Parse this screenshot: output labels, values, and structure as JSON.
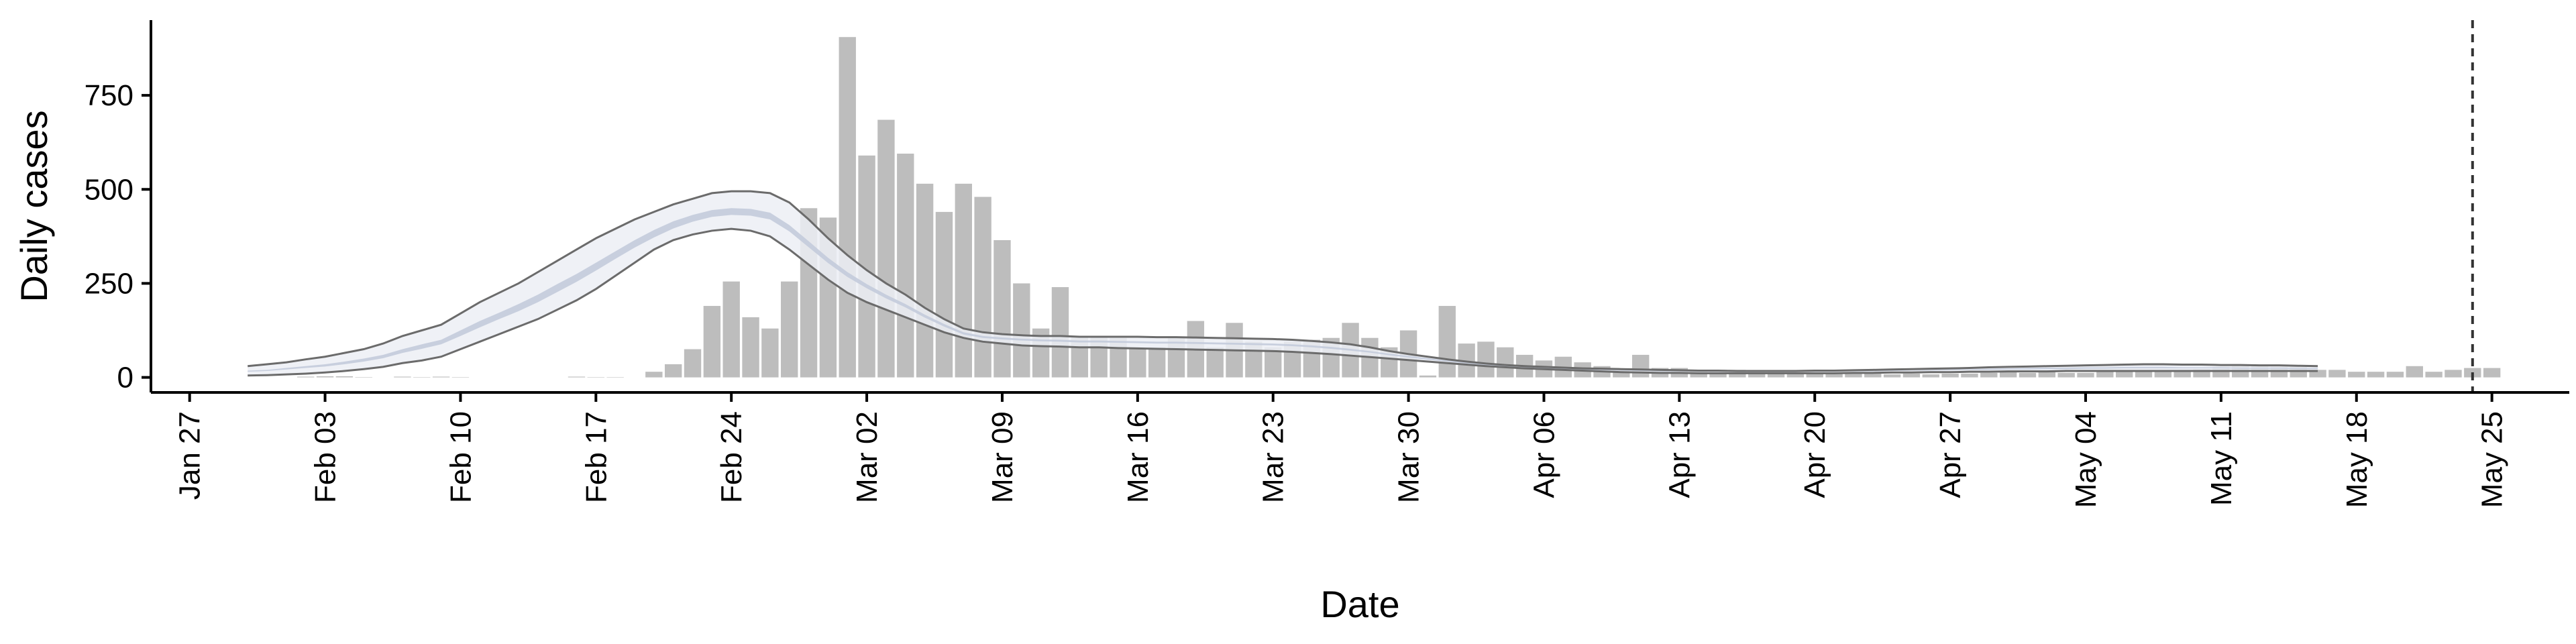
{
  "chart_data": {
    "type": "bar",
    "xlabel": "Date",
    "ylabel": "Daily cases",
    "x_start_date": "2020-01-30",
    "x_domain": [
      "2020-01-25",
      "2020-05-29"
    ],
    "ylim": [
      -40,
      950
    ],
    "y_ticks": [
      0,
      250,
      500,
      750
    ],
    "x_ticks": [
      {
        "date": "2020-01-27",
        "label": "Jan 27"
      },
      {
        "date": "2020-02-03",
        "label": "Feb 03"
      },
      {
        "date": "2020-02-10",
        "label": "Feb 10"
      },
      {
        "date": "2020-02-17",
        "label": "Feb 17"
      },
      {
        "date": "2020-02-24",
        "label": "Feb 24"
      },
      {
        "date": "2020-03-02",
        "label": "Mar 02"
      },
      {
        "date": "2020-03-09",
        "label": "Mar 09"
      },
      {
        "date": "2020-03-16",
        "label": "Mar 16"
      },
      {
        "date": "2020-03-23",
        "label": "Mar 23"
      },
      {
        "date": "2020-03-30",
        "label": "Mar 30"
      },
      {
        "date": "2020-04-06",
        "label": "Apr 06"
      },
      {
        "date": "2020-04-13",
        "label": "Apr 13"
      },
      {
        "date": "2020-04-20",
        "label": "Apr 20"
      },
      {
        "date": "2020-04-27",
        "label": "Apr 27"
      },
      {
        "date": "2020-05-04",
        "label": "May 04"
      },
      {
        "date": "2020-05-11",
        "label": "May 11"
      },
      {
        "date": "2020-05-18",
        "label": "May 18"
      },
      {
        "date": "2020-05-25",
        "label": "May 25"
      }
    ],
    "vline_date": "2020-05-24",
    "bars": {
      "name": "Daily cases",
      "values": [
        0,
        0,
        0,
        2,
        3,
        3,
        1,
        0,
        2,
        1,
        2,
        1,
        0,
        0,
        0,
        0,
        0,
        2,
        1,
        1,
        0,
        15,
        35,
        75,
        190,
        255,
        160,
        130,
        255,
        450,
        425,
        905,
        590,
        685,
        595,
        515,
        440,
        515,
        480,
        365,
        250,
        130,
        240,
        110,
        110,
        105,
        75,
        80,
        105,
        150,
        80,
        145,
        95,
        80,
        95,
        100,
        105,
        145,
        105,
        80,
        125,
        5,
        190,
        90,
        95,
        80,
        60,
        45,
        55,
        40,
        30,
        20,
        60,
        25,
        25,
        20,
        20,
        20,
        15,
        15,
        12,
        10,
        12,
        10,
        10,
        8,
        10,
        8,
        10,
        10,
        12,
        15,
        12,
        15,
        12,
        12,
        15,
        15,
        15,
        18,
        20,
        22,
        28,
        30,
        30,
        28,
        28,
        20,
        20,
        15,
        15,
        15,
        30,
        15,
        20,
        25,
        25
      ]
    },
    "series": [
      {
        "name": "upper",
        "values": [
          30,
          35,
          40,
          48,
          55,
          65,
          75,
          90,
          110,
          125,
          140,
          170,
          200,
          225,
          250,
          280,
          310,
          340,
          370,
          395,
          420,
          440,
          460,
          475,
          490,
          495,
          495,
          490,
          465,
          420,
          370,
          325,
          285,
          250,
          220,
          185,
          155,
          130,
          120,
          115,
          112,
          110,
          110,
          108,
          108,
          108,
          108,
          107,
          107,
          106,
          105,
          104,
          103,
          102,
          100,
          97,
          93,
          88,
          80,
          70,
          62,
          55,
          48,
          42,
          37,
          33,
          30,
          28,
          26,
          24,
          23,
          22,
          21,
          20,
          19,
          18,
          18,
          17,
          17,
          17,
          17,
          18,
          18,
          19,
          20,
          21,
          22,
          23,
          24,
          25,
          27,
          28,
          29,
          30,
          31,
          32,
          33,
          34,
          35,
          35,
          34,
          34,
          33,
          33,
          32,
          32,
          31,
          30
        ]
      },
      {
        "name": "lower",
        "values": [
          5,
          6,
          8,
          10,
          13,
          17,
          22,
          28,
          38,
          45,
          55,
          75,
          95,
          115,
          135,
          155,
          180,
          205,
          235,
          270,
          305,
          340,
          365,
          380,
          390,
          395,
          390,
          375,
          340,
          300,
          260,
          225,
          200,
          180,
          160,
          140,
          120,
          105,
          95,
          90,
          85,
          83,
          82,
          80,
          80,
          78,
          77,
          76,
          75,
          74,
          73,
          72,
          71,
          70,
          68,
          65,
          62,
          58,
          54,
          50,
          46,
          42,
          38,
          34,
          30,
          27,
          24,
          22,
          20,
          18,
          16,
          14,
          13,
          12,
          12,
          11,
          11,
          11,
          11,
          11,
          11,
          11,
          11,
          12,
          12,
          13,
          13,
          14,
          14,
          15,
          15,
          16,
          16,
          16,
          17,
          17,
          17,
          17,
          17,
          17,
          17,
          17,
          17,
          17,
          17,
          17,
          17,
          17
        ]
      },
      {
        "name": "inner_upper",
        "values": [
          18,
          20,
          25,
          30,
          35,
          42,
          50,
          60,
          75,
          88,
          100,
          125,
          150,
          172,
          195,
          220,
          248,
          275,
          305,
          335,
          365,
          392,
          415,
          432,
          445,
          450,
          448,
          438,
          405,
          362,
          318,
          280,
          248,
          220,
          195,
          167,
          142,
          120,
          110,
          106,
          103,
          101,
          100,
          98,
          98,
          97,
          96,
          95,
          95,
          94,
          93,
          92,
          91,
          90,
          88,
          85,
          81,
          76,
          70,
          63,
          57,
          51,
          45,
          40,
          35,
          31,
          28,
          26,
          24,
          22,
          21,
          20,
          19,
          18,
          17,
          17,
          16,
          16,
          16,
          16,
          16,
          16,
          17,
          17,
          18,
          19,
          19,
          20,
          21,
          22,
          23,
          24,
          25,
          26,
          26,
          27,
          27,
          28,
          28,
          28,
          27,
          27,
          27,
          26,
          26,
          26,
          25,
          25
        ]
      },
      {
        "name": "inner_lower",
        "values": [
          15,
          17,
          21,
          25,
          29,
          35,
          42,
          51,
          65,
          76,
          88,
          110,
          133,
          155,
          176,
          200,
          227,
          254,
          284,
          315,
          345,
          372,
          396,
          414,
          427,
          432,
          430,
          420,
          388,
          346,
          304,
          267,
          237,
          210,
          186,
          159,
          135,
          114,
          105,
          101,
          98,
          96,
          95,
          93,
          93,
          92,
          91,
          90,
          90,
          89,
          88,
          87,
          86,
          85,
          83,
          80,
          76,
          71,
          66,
          59,
          53,
          47,
          42,
          37,
          32,
          29,
          26,
          24,
          22,
          20,
          19,
          18,
          17,
          16,
          16,
          15,
          15,
          15,
          15,
          15,
          15,
          15,
          15,
          16,
          16,
          17,
          18,
          18,
          19,
          20,
          20,
          21,
          21,
          22,
          22,
          23,
          23,
          24,
          24,
          24,
          24,
          24,
          24,
          23,
          23,
          23,
          22,
          22
        ]
      }
    ],
    "grid": false,
    "legend": "none",
    "colors": {
      "bars": "#bdbdbd",
      "outer_band": "#eceef5",
      "inner_band": "#c3cbdb",
      "band_edge": "#6b6b6b",
      "axis": "#000000",
      "vline": "#333333"
    }
  }
}
